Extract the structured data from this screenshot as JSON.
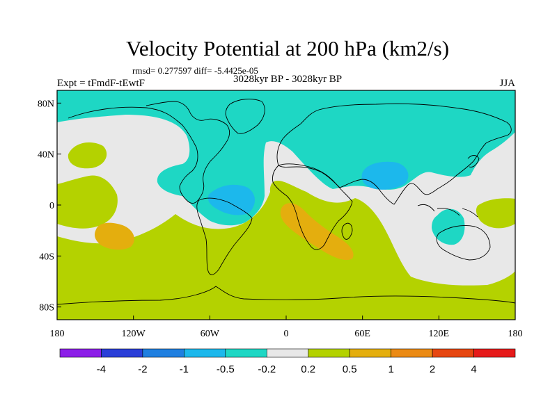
{
  "title": "Velocity Potential at 200 hPa (km2/s)",
  "stats_line": "rmsd= 0.277597 diff= -5.4425e-05",
  "experiment_label": "Expt = tFmdF-tEwtF",
  "period_label": "3028kyr BP - 3028kyr BP",
  "season_label": "JJA",
  "map": {
    "projection": "cylindrical equidistant",
    "lon_range": [
      -180,
      180
    ],
    "lat_range": [
      -90,
      90
    ],
    "x_ticks": [
      {
        "value": -180,
        "label": "180"
      },
      {
        "value": -120,
        "label": "120W"
      },
      {
        "value": -60,
        "label": "60W"
      },
      {
        "value": 0,
        "label": "0"
      },
      {
        "value": 60,
        "label": "60E"
      },
      {
        "value": 120,
        "label": "120E"
      },
      {
        "value": 180,
        "label": "180"
      }
    ],
    "y_ticks": [
      {
        "value": 80,
        "label": "80N"
      },
      {
        "value": 40,
        "label": "40N"
      },
      {
        "value": 0,
        "label": "0"
      },
      {
        "value": -40,
        "label": "40S"
      },
      {
        "value": -80,
        "label": "80S"
      }
    ]
  },
  "colorbar": {
    "bins": [
      {
        "color": "#8c1ee8"
      },
      {
        "color": "#2a3ed8"
      },
      {
        "color": "#1f7fe0"
      },
      {
        "color": "#1cb8ec"
      },
      {
        "color": "#1ed7c4"
      },
      {
        "color": "#e8e8e8"
      },
      {
        "color": "#b4d200"
      },
      {
        "color": "#e4ae0e"
      },
      {
        "color": "#eb8a14"
      },
      {
        "color": "#e64610"
      },
      {
        "color": "#e61a1a"
      }
    ],
    "labels": [
      "-4",
      "-2",
      "-1",
      "-0.5",
      "-0.2",
      "0.2",
      "0.5",
      "1",
      "2",
      "4"
    ]
  },
  "colors": {
    "background_level": "#e8e8e8",
    "negative_level": "#1ed7c4",
    "negative_strong_level": "#1cb8ec",
    "positive_level": "#b4d200",
    "positive_strong_level": "#e4ae0e",
    "coastline": "#000000"
  }
}
